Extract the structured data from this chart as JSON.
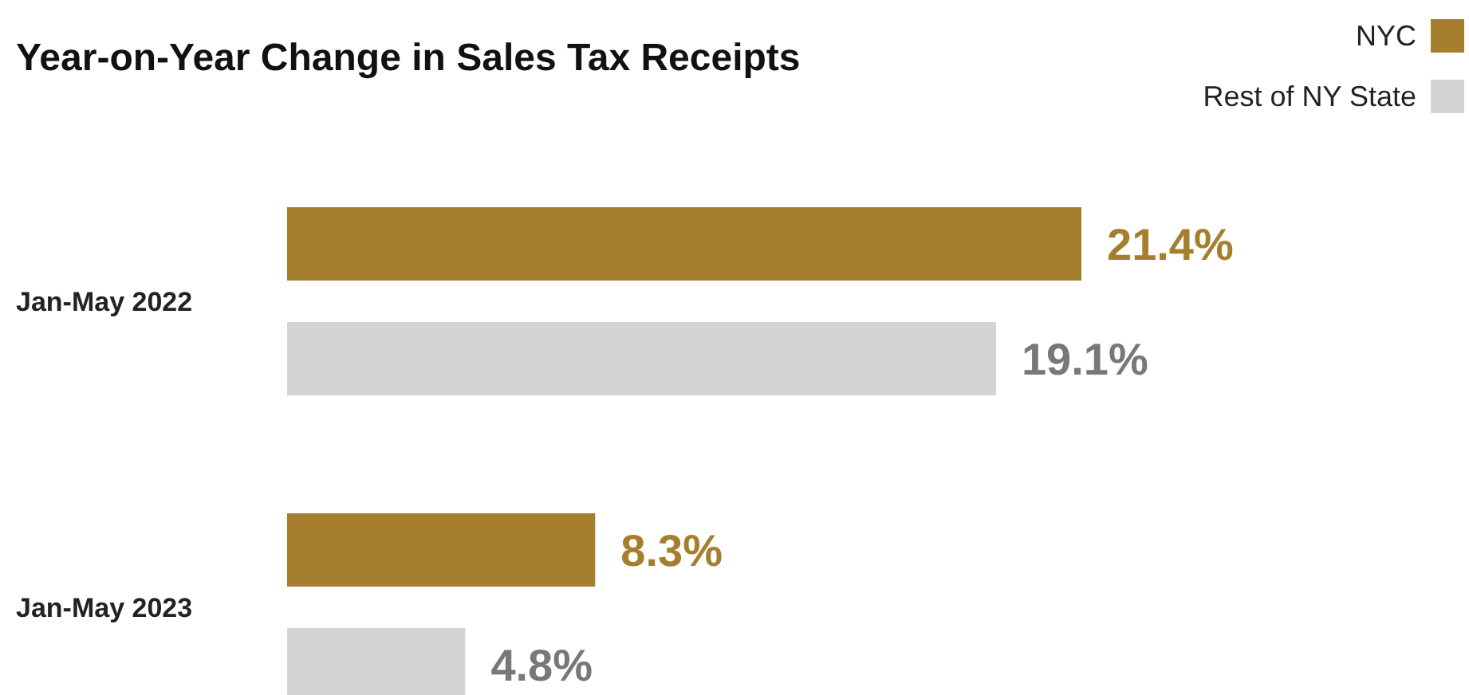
{
  "chart_data": {
    "type": "bar",
    "orientation": "horizontal",
    "title": "Year-on-Year Change in Sales Tax Receipts",
    "categories": [
      "Jan-May 2022",
      "Jan-May 2023"
    ],
    "series": [
      {
        "name": "NYC",
        "color": "#a67f2e",
        "values": [
          21.4,
          8.3
        ],
        "value_labels": [
          "21.4%",
          "8.3%"
        ]
      },
      {
        "name": "Rest of NY State",
        "color": "#d3d4d6",
        "values": [
          19.1,
          4.8
        ],
        "value_labels": [
          "19.1%",
          "4.8%"
        ]
      }
    ],
    "legend": "top right"
  }
}
